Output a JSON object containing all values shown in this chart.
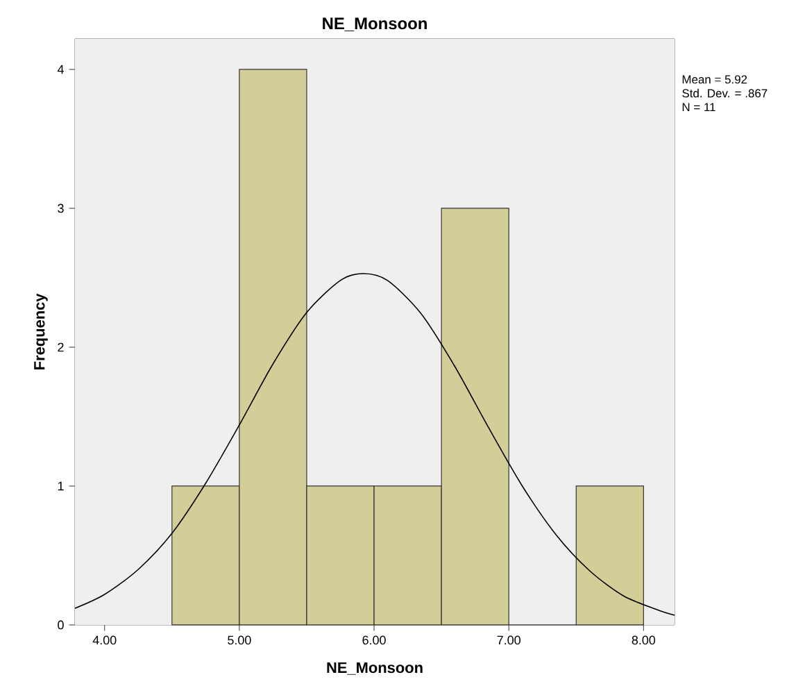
{
  "chart_data": {
    "type": "histogram",
    "title": "NE_Monsoon",
    "xlabel": "NE_Monsoon",
    "ylabel": "Frequency",
    "bins": [
      4.5,
      5.0,
      5.5,
      6.0,
      6.5,
      7.0,
      7.5,
      8.0
    ],
    "values": [
      1,
      4,
      1,
      1,
      3,
      0,
      1
    ],
    "color": "#d3ce97",
    "series": [
      {
        "type": "line",
        "color": "#000000",
        "x": [
          3.78,
          4.0,
          4.25,
          4.5,
          4.75,
          5.0,
          5.25,
          5.5,
          5.75,
          5.92,
          6.1,
          6.35,
          6.6,
          6.85,
          7.1,
          7.35,
          7.6,
          7.85,
          8.1,
          8.23
        ],
        "values": [
          0.12,
          0.22,
          0.4,
          0.66,
          1.02,
          1.44,
          1.88,
          2.25,
          2.48,
          2.53,
          2.48,
          2.24,
          1.86,
          1.42,
          1.0,
          0.65,
          0.39,
          0.21,
          0.11,
          0.07
        ]
      }
    ],
    "xlim": [
      3.78,
      8.23
    ],
    "ylim": [
      0,
      4.22
    ],
    "xticks": [
      {
        "value": 4,
        "label": "4.00"
      },
      {
        "value": 5,
        "label": "5.00"
      },
      {
        "value": 6,
        "label": "6.00"
      },
      {
        "value": 7,
        "label": "7.00"
      },
      {
        "value": 8,
        "label": "8.00"
      }
    ],
    "yticks": [
      0,
      1,
      2,
      3,
      4
    ],
    "annotations": [
      "Mean = 5.92",
      "Std. Dev. = .867",
      "N = 11"
    ]
  }
}
